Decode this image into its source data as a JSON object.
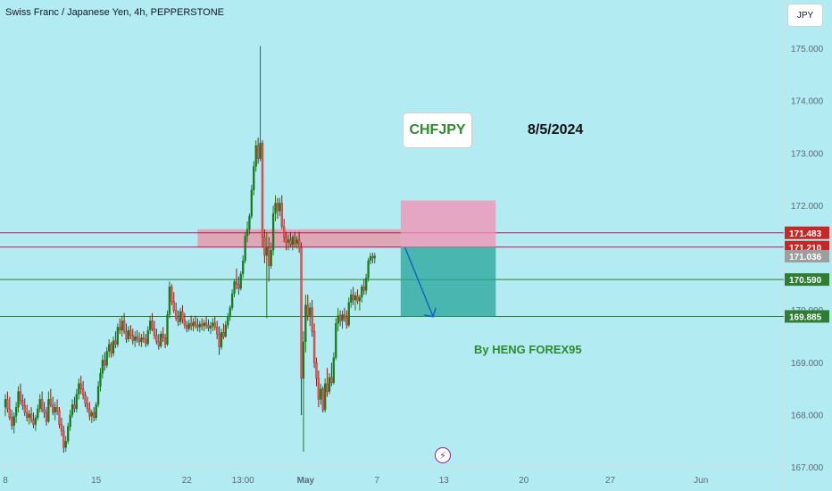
{
  "header": {
    "title": "Swiss Franc / Japanese Yen, 4h, PEPPERSTONE"
  },
  "currency": "JPY",
  "annotations": {
    "pair": "CHFJPY",
    "date": "8/5/2024",
    "author": "By HENG FOREX95"
  },
  "icons": {
    "indicator": "lightning-icon"
  },
  "colors": {
    "background": "#b2ebf2",
    "up": "#26a69a",
    "up_wick": "#1b7a1b",
    "down": "#ef5350",
    "down_wick": "#8a1c1c",
    "zone": "#f08a9b",
    "level_red": "#c2185b",
    "level_green": "#2e7d32",
    "arrow": "#1565c0",
    "tp_box": "#26a69a",
    "sl_box": "#f48fb1"
  },
  "chart_data": {
    "type": "candlestick",
    "y_axis": {
      "range": [
        166.55,
        175.93
      ],
      "ticks": [
        {
          "value": 167,
          "label": "167.000"
        },
        {
          "value": 168,
          "label": "168.000"
        },
        {
          "value": 169,
          "label": "169.000"
        },
        {
          "value": 170,
          "label": "170.000"
        },
        {
          "value": 171,
          "label": "171.000"
        },
        {
          "value": 172,
          "label": "172.000"
        },
        {
          "value": 173,
          "label": "173.000"
        },
        {
          "value": 174,
          "label": "174.000"
        },
        {
          "value": 175,
          "label": "175.000"
        }
      ]
    },
    "x_axis": {
      "ticks": [
        {
          "index": 0,
          "label": "8"
        },
        {
          "index": 42,
          "label": "15"
        },
        {
          "index": 84,
          "label": "22"
        },
        {
          "index": 110,
          "label": "13:00"
        },
        {
          "index": 139,
          "label": "May"
        },
        {
          "index": 172,
          "label": "7"
        },
        {
          "index": 203,
          "label": "13"
        },
        {
          "index": 240,
          "label": "20"
        },
        {
          "index": 280,
          "label": "27"
        },
        {
          "index": 322,
          "label": "Jun"
        }
      ]
    },
    "price_tags": [
      {
        "value": 171.483,
        "label": "171.483",
        "color": "#c62828"
      },
      {
        "value": 171.21,
        "label": "171.210",
        "color": "#c62828"
      },
      {
        "value": 171.036,
        "label": "171.036",
        "color": "#9e9e9e"
      },
      {
        "value": 170.59,
        "label": "170.590",
        "color": "#2e7d32"
      },
      {
        "value": 169.885,
        "label": "169.885",
        "color": "#2e7d32"
      }
    ],
    "horizontal_lines": [
      {
        "value": 171.483,
        "color": "#c2185b"
      },
      {
        "value": 171.21,
        "color": "#c2185b"
      },
      {
        "value": 170.59,
        "color": "#2e7d32"
      },
      {
        "value": 169.885,
        "color": "#2e7d32"
      }
    ],
    "zone": {
      "from_index": 89,
      "to_index": 183,
      "low": 171.2,
      "high": 171.55
    },
    "position": {
      "side": "short",
      "from_index": 183,
      "to_index": 227,
      "entry": 171.21,
      "stop": 172.1,
      "target": 169.885
    },
    "arrow": {
      "from_index": 185,
      "from_value": 171.2,
      "to_index": 198,
      "to_value": 169.88
    },
    "candles": [
      [
        168.15,
        168.4,
        167.98,
        168.3
      ],
      [
        168.3,
        168.45,
        168.05,
        168.12
      ],
      [
        168.12,
        168.35,
        167.9,
        167.95
      ],
      [
        167.95,
        168.1,
        167.72,
        167.8
      ],
      [
        167.8,
        168.05,
        167.65,
        167.98
      ],
      [
        167.98,
        168.25,
        167.85,
        168.15
      ],
      [
        168.15,
        168.55,
        168.05,
        168.45
      ],
      [
        168.45,
        168.6,
        168.2,
        168.28
      ],
      [
        168.28,
        168.4,
        168.1,
        168.18
      ],
      [
        168.18,
        168.32,
        167.98,
        168.05
      ],
      [
        168.05,
        168.2,
        167.88,
        167.95
      ],
      [
        167.95,
        168.1,
        167.82,
        168.02
      ],
      [
        168.02,
        168.15,
        167.85,
        167.9
      ],
      [
        167.9,
        168.05,
        167.75,
        167.82
      ],
      [
        167.82,
        168.0,
        167.7,
        167.95
      ],
      [
        167.95,
        168.2,
        167.9,
        168.12
      ],
      [
        168.12,
        168.4,
        168.05,
        168.3
      ],
      [
        168.3,
        168.45,
        168.05,
        168.1
      ],
      [
        168.1,
        168.25,
        167.95,
        168.05
      ],
      [
        168.05,
        168.15,
        167.8,
        167.88
      ],
      [
        167.88,
        168.45,
        167.85,
        168.3
      ],
      [
        168.3,
        168.5,
        168.15,
        168.2
      ],
      [
        168.2,
        168.35,
        168.0,
        168.05
      ],
      [
        168.05,
        168.25,
        167.9,
        168.15
      ],
      [
        168.15,
        168.3,
        168.0,
        168.08
      ],
      [
        168.08,
        168.15,
        167.75,
        167.82
      ],
      [
        167.82,
        167.95,
        167.6,
        167.7
      ],
      [
        167.7,
        167.8,
        167.28,
        167.38
      ],
      [
        167.38,
        167.6,
        167.3,
        167.5
      ],
      [
        167.5,
        167.85,
        167.45,
        167.78
      ],
      [
        167.78,
        168.1,
        167.7,
        168.0
      ],
      [
        168.0,
        168.3,
        167.95,
        168.2
      ],
      [
        168.2,
        168.35,
        168.05,
        168.12
      ],
      [
        168.12,
        168.5,
        168.05,
        168.4
      ],
      [
        168.4,
        168.7,
        168.3,
        168.6
      ],
      [
        168.6,
        168.75,
        168.4,
        168.5
      ],
      [
        168.5,
        168.65,
        168.3,
        168.38
      ],
      [
        168.38,
        168.45,
        168.15,
        168.22
      ],
      [
        168.22,
        168.35,
        168.05,
        168.12
      ],
      [
        168.12,
        168.25,
        167.9,
        167.98
      ],
      [
        167.98,
        168.1,
        167.85,
        168.05
      ],
      [
        168.05,
        168.15,
        167.88,
        167.95
      ],
      [
        167.95,
        168.25,
        167.9,
        168.2
      ],
      [
        168.2,
        168.65,
        168.15,
        168.55
      ],
      [
        168.55,
        168.9,
        168.45,
        168.8
      ],
      [
        168.8,
        169.15,
        168.7,
        169.05
      ],
      [
        169.05,
        169.2,
        168.85,
        168.95
      ],
      [
        168.95,
        169.3,
        168.9,
        169.22
      ],
      [
        169.22,
        169.45,
        169.1,
        169.35
      ],
      [
        169.35,
        169.4,
        169.1,
        169.18
      ],
      [
        169.18,
        169.5,
        169.12,
        169.42
      ],
      [
        169.42,
        169.6,
        169.28,
        169.35
      ],
      [
        169.35,
        169.75,
        169.3,
        169.68
      ],
      [
        169.68,
        169.85,
        169.55,
        169.62
      ],
      [
        169.62,
        169.9,
        169.5,
        169.8
      ],
      [
        169.8,
        169.95,
        169.55,
        169.6
      ],
      [
        169.6,
        169.75,
        169.38,
        169.45
      ],
      [
        169.45,
        169.7,
        169.4,
        169.62
      ],
      [
        169.62,
        169.72,
        169.45,
        169.52
      ],
      [
        169.52,
        169.65,
        169.35,
        169.42
      ],
      [
        169.42,
        169.6,
        169.3,
        169.5
      ],
      [
        169.5,
        169.62,
        169.38,
        169.45
      ],
      [
        169.45,
        169.58,
        169.32,
        169.4
      ],
      [
        169.4,
        169.55,
        169.3,
        169.48
      ],
      [
        169.48,
        169.6,
        169.38,
        169.45
      ],
      [
        169.45,
        169.55,
        169.3,
        169.36
      ],
      [
        169.36,
        169.7,
        169.32,
        169.62
      ],
      [
        169.62,
        169.9,
        169.55,
        169.8
      ],
      [
        169.8,
        169.95,
        169.6,
        169.65
      ],
      [
        169.65,
        169.8,
        169.45,
        169.52
      ],
      [
        169.52,
        169.65,
        169.35,
        169.4
      ],
      [
        169.4,
        169.55,
        169.25,
        169.32
      ],
      [
        169.32,
        169.6,
        169.28,
        169.55
      ],
      [
        169.55,
        169.68,
        169.4,
        169.48
      ],
      [
        169.48,
        169.55,
        169.28,
        169.35
      ],
      [
        169.35,
        170.0,
        169.32,
        169.92
      ],
      [
        169.92,
        170.55,
        169.85,
        170.45
      ],
      [
        170.45,
        170.5,
        170.1,
        170.18
      ],
      [
        170.18,
        170.35,
        169.95,
        170.0
      ],
      [
        170.0,
        170.15,
        169.8,
        169.85
      ],
      [
        169.85,
        170.0,
        169.7,
        169.78
      ],
      [
        169.78,
        170.05,
        169.72,
        169.98
      ],
      [
        169.98,
        170.1,
        169.75,
        169.82
      ],
      [
        169.82,
        169.95,
        169.65,
        169.72
      ],
      [
        169.72,
        169.8,
        169.58,
        169.65
      ],
      [
        169.65,
        169.82,
        169.6,
        169.75
      ],
      [
        169.75,
        169.9,
        169.62,
        169.7
      ],
      [
        169.7,
        169.85,
        169.6,
        169.78
      ],
      [
        169.78,
        169.9,
        169.65,
        169.72
      ],
      [
        169.72,
        169.85,
        169.6,
        169.68
      ],
      [
        169.68,
        169.8,
        169.58,
        169.74
      ],
      [
        169.74,
        169.85,
        169.62,
        169.7
      ],
      [
        169.7,
        169.82,
        169.6,
        169.76
      ],
      [
        169.76,
        169.88,
        169.65,
        169.72
      ],
      [
        169.72,
        169.83,
        169.6,
        169.66
      ],
      [
        169.66,
        169.78,
        169.55,
        169.7
      ],
      [
        169.7,
        169.85,
        169.6,
        169.76
      ],
      [
        169.76,
        169.88,
        169.62,
        169.68
      ],
      [
        169.68,
        169.8,
        169.45,
        169.55
      ],
      [
        169.55,
        169.7,
        169.15,
        169.3
      ],
      [
        169.3,
        169.65,
        169.25,
        169.58
      ],
      [
        169.58,
        169.75,
        169.45,
        169.5
      ],
      [
        169.5,
        169.8,
        169.48,
        169.72
      ],
      [
        169.72,
        169.95,
        169.65,
        169.88
      ],
      [
        169.88,
        170.1,
        169.8,
        170.05
      ],
      [
        170.05,
        170.4,
        170.0,
        170.32
      ],
      [
        170.32,
        170.6,
        170.25,
        170.55
      ],
      [
        170.55,
        170.8,
        170.4,
        170.5
      ],
      [
        170.5,
        170.65,
        170.3,
        170.42
      ],
      [
        170.42,
        170.75,
        170.38,
        170.7
      ],
      [
        170.7,
        171.05,
        170.62,
        170.95
      ],
      [
        170.95,
        171.5,
        170.9,
        171.42
      ],
      [
        171.42,
        171.7,
        171.3,
        171.55
      ],
      [
        171.55,
        171.85,
        171.45,
        171.8
      ],
      [
        171.8,
        172.4,
        171.75,
        172.3
      ],
      [
        172.3,
        172.85,
        172.2,
        172.75
      ],
      [
        172.75,
        173.25,
        172.65,
        173.15
      ],
      [
        173.15,
        173.3,
        172.8,
        172.9
      ],
      [
        172.9,
        175.05,
        172.85,
        173.2
      ],
      [
        173.2,
        173.25,
        171.2,
        171.4
      ],
      [
        171.4,
        171.55,
        170.9,
        171.05
      ],
      [
        171.05,
        171.5,
        169.85,
        171.2
      ],
      [
        171.2,
        171.4,
        170.55,
        170.85
      ],
      [
        170.85,
        171.3,
        170.8,
        171.15
      ],
      [
        171.15,
        172.0,
        171.05,
        171.85
      ],
      [
        171.85,
        172.2,
        171.7,
        172.05
      ],
      [
        172.05,
        172.15,
        171.75,
        171.9
      ],
      [
        171.9,
        172.15,
        171.8,
        172.05
      ],
      [
        172.05,
        172.2,
        171.55,
        171.6
      ],
      [
        171.6,
        171.75,
        171.3,
        171.4
      ],
      [
        171.4,
        171.5,
        171.15,
        171.3
      ],
      [
        171.3,
        171.45,
        171.15,
        171.35
      ],
      [
        171.35,
        171.5,
        171.2,
        171.25
      ],
      [
        171.25,
        171.45,
        171.15,
        171.4
      ],
      [
        171.4,
        171.5,
        171.2,
        171.28
      ],
      [
        171.28,
        171.42,
        171.18,
        171.35
      ],
      [
        171.35,
        171.5,
        171.1,
        171.2
      ],
      [
        171.2,
        171.3,
        168.0,
        168.7
      ],
      [
        168.7,
        169.6,
        167.3,
        169.4
      ],
      [
        169.4,
        170.3,
        169.2,
        170.1
      ],
      [
        170.1,
        170.3,
        169.8,
        169.9
      ],
      [
        169.9,
        170.15,
        169.7,
        170.05
      ],
      [
        170.05,
        170.2,
        169.5,
        169.6
      ],
      [
        169.6,
        169.75,
        168.9,
        169.0
      ],
      [
        169.0,
        169.1,
        168.55,
        168.7
      ],
      [
        168.7,
        168.85,
        168.15,
        168.3
      ],
      [
        168.3,
        168.6,
        168.2,
        168.5
      ],
      [
        168.5,
        168.55,
        168.05,
        168.1
      ],
      [
        168.1,
        168.7,
        168.05,
        168.6
      ],
      [
        168.6,
        168.9,
        168.35,
        168.45
      ],
      [
        168.45,
        168.8,
        168.4,
        168.72
      ],
      [
        168.72,
        169.0,
        168.55,
        168.62
      ],
      [
        168.62,
        169.2,
        168.58,
        169.1
      ],
      [
        169.1,
        169.85,
        169.05,
        169.75
      ],
      [
        169.75,
        170.05,
        169.6,
        169.9
      ],
      [
        169.9,
        170.0,
        169.7,
        169.8
      ],
      [
        169.8,
        170.0,
        169.65,
        169.92
      ],
      [
        169.92,
        170.05,
        169.78,
        169.85
      ],
      [
        169.85,
        170.0,
        169.65,
        169.72
      ],
      [
        169.72,
        170.25,
        169.68,
        170.15
      ],
      [
        170.15,
        170.4,
        170.05,
        170.3
      ],
      [
        170.3,
        170.45,
        170.1,
        170.2
      ],
      [
        170.2,
        170.35,
        170.0,
        170.28
      ],
      [
        170.28,
        170.4,
        170.12,
        170.18
      ],
      [
        170.18,
        170.3,
        170.0,
        170.25
      ],
      [
        170.25,
        170.5,
        170.15,
        170.45
      ],
      [
        170.45,
        170.6,
        170.3,
        170.38
      ],
      [
        170.38,
        170.7,
        170.3,
        170.62
      ],
      [
        170.62,
        171.0,
        170.55,
        170.95
      ],
      [
        170.95,
        171.1,
        170.88,
        171.03
      ],
      [
        171.03,
        171.1,
        170.9,
        171.0
      ],
      [
        171.0,
        171.1,
        170.9,
        171.04
      ]
    ]
  }
}
